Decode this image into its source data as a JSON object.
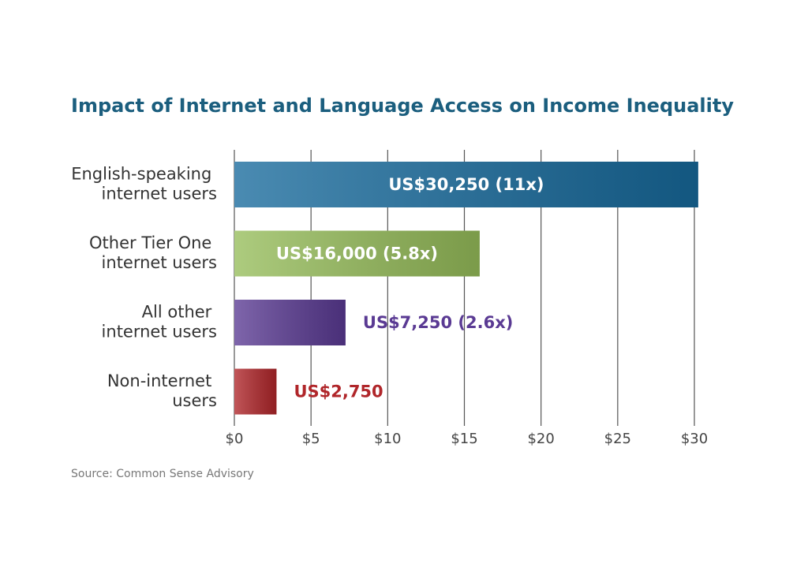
{
  "chart_data": {
    "type": "barh",
    "title": "Impact of Internet and Language Access on Income Inequality",
    "categories": [
      "English-speaking internet users",
      "Other Tier One internet users",
      "All other internet users",
      "Non-internet users"
    ],
    "values": [
      30.25,
      16,
      7.25,
      2.75
    ],
    "value_labels": [
      "US$30,250 (11x)",
      "US$16,000 (5.8x)",
      "US$7,250 (2.6x)",
      "US$2,750"
    ],
    "colors": [
      "#176a9c",
      "#96bd5a",
      "#5a3a93",
      "#b0262a"
    ],
    "xlim": [
      0,
      30
    ],
    "xticks": [
      {
        "value": 0,
        "label": "$0"
      },
      {
        "value": 5,
        "label": "$5"
      },
      {
        "value": 10,
        "label": "$10"
      },
      {
        "value": 15,
        "label": "$15"
      },
      {
        "value": 20,
        "label": "$20"
      },
      {
        "value": 25,
        "label": "$25"
      },
      {
        "value": 30,
        "label": "$30"
      }
    ],
    "grid": true,
    "source": "Source: Common Sense Advisory"
  }
}
